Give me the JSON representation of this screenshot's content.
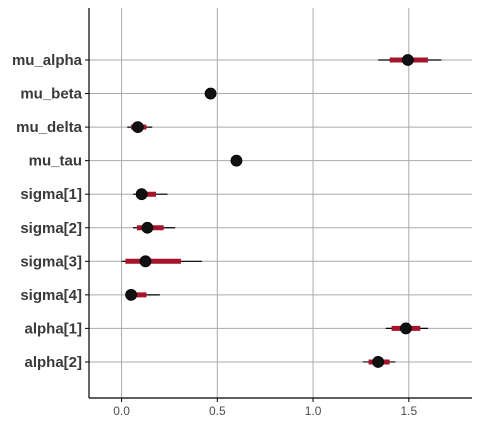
{
  "chart_data": {
    "type": "interval",
    "xlim": [
      -0.17,
      1.83
    ],
    "xticks": [
      {
        "value": 0.0,
        "label": "0.0"
      },
      {
        "value": 0.5,
        "label": "0.5"
      },
      {
        "value": 1.0,
        "label": "1.0"
      },
      {
        "value": 1.5,
        "label": "1.5"
      }
    ],
    "grid": true,
    "colors": {
      "inner": "#a6142c",
      "outer": "#000000",
      "point": "#111111",
      "grid": "#aaaaaa",
      "axis": "#000000"
    },
    "parameters": [
      {
        "name": "mu_alpha",
        "median": 1.495,
        "inner": [
          1.4,
          1.6
        ],
        "outer": [
          1.34,
          1.67
        ]
      },
      {
        "name": "mu_beta",
        "median": 0.465,
        "inner": [
          0.445,
          0.485
        ],
        "outer": [
          0.435,
          0.49
        ]
      },
      {
        "name": "mu_delta",
        "median": 0.085,
        "inner": [
          0.05,
          0.13
        ],
        "outer": [
          0.03,
          0.16
        ]
      },
      {
        "name": "mu_tau",
        "median": 0.6,
        "inner": [
          0.585,
          0.615
        ],
        "outer": [
          0.58,
          0.62
        ]
      },
      {
        "name": "sigma[1]",
        "median": 0.105,
        "inner": [
          0.08,
          0.18
        ],
        "outer": [
          0.06,
          0.24
        ]
      },
      {
        "name": "sigma[2]",
        "median": 0.135,
        "inner": [
          0.08,
          0.22
        ],
        "outer": [
          0.06,
          0.28
        ]
      },
      {
        "name": "sigma[3]",
        "median": 0.125,
        "inner": [
          0.02,
          0.31
        ],
        "outer": [
          0.0,
          0.42
        ]
      },
      {
        "name": "sigma[4]",
        "median": 0.05,
        "inner": [
          0.03,
          0.13
        ],
        "outer": [
          0.02,
          0.2
        ]
      },
      {
        "name": "alpha[1]",
        "median": 1.485,
        "inner": [
          1.41,
          1.56
        ],
        "outer": [
          1.38,
          1.6
        ]
      },
      {
        "name": "alpha[2]",
        "median": 1.34,
        "inner": [
          1.29,
          1.4
        ],
        "outer": [
          1.26,
          1.43
        ]
      }
    ]
  }
}
